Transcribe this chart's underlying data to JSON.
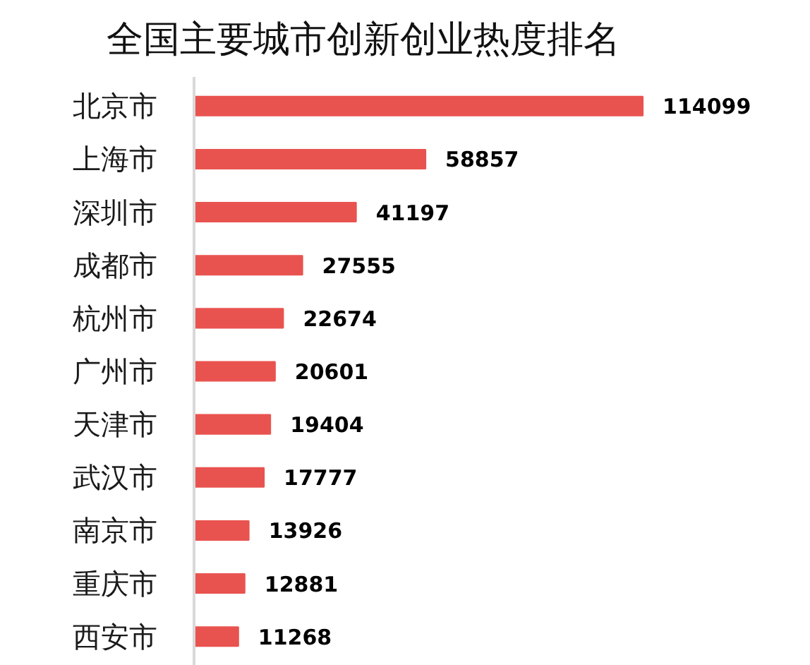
{
  "chart_data": {
    "type": "bar",
    "orientation": "horizontal",
    "title": "全国主要城市创新创业热度排名",
    "categories": [
      "北京市",
      "上海市",
      "深圳市",
      "成都市",
      "杭州市",
      "广州市",
      "天津市",
      "武汉市",
      "南京市",
      "重庆市",
      "西安市"
    ],
    "values": [
      114099,
      58857,
      41197,
      27555,
      22674,
      20601,
      19404,
      17777,
      13926,
      12881,
      11268
    ],
    "color": "#e9534f",
    "data_labels": true,
    "grid": false
  }
}
